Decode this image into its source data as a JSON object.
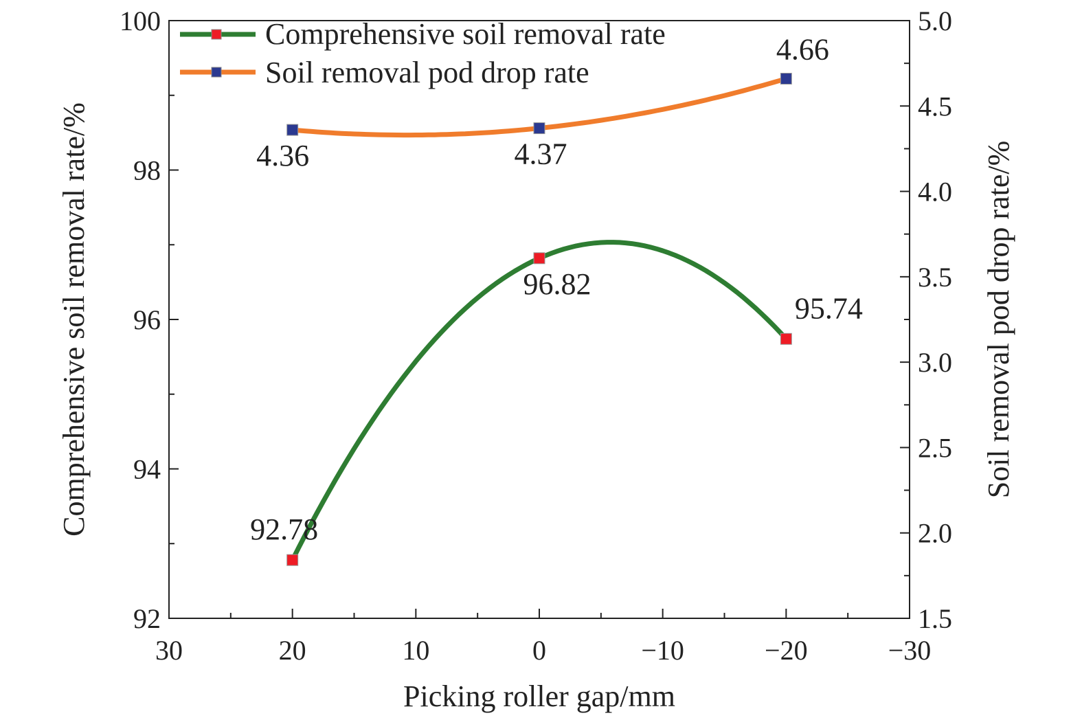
{
  "chart_data": {
    "type": "line",
    "xlabel": "Picking roller gap/mm",
    "ylabel_left": "Comprehensive soil removal rate/%",
    "ylabel_right": "Soil removal pod drop rate/%",
    "x_ticks": [
      "30",
      "20",
      "10",
      "0",
      "−10",
      "−20",
      "−30"
    ],
    "x_tick_values": [
      30,
      20,
      10,
      0,
      -10,
      -20,
      -30
    ],
    "xlim": [
      30,
      -30
    ],
    "y_left_ticks": [
      "92",
      "94",
      "96",
      "98",
      "100"
    ],
    "y_left_tick_values": [
      92,
      94,
      96,
      98,
      100
    ],
    "ylim_left": [
      92,
      100
    ],
    "y_right_ticks": [
      "1.5",
      "2.0",
      "2.5",
      "3.0",
      "3.5",
      "4.0",
      "4.5",
      "5.0"
    ],
    "y_right_tick_values": [
      1.5,
      2.0,
      2.5,
      3.0,
      3.5,
      4.0,
      4.5,
      5.0
    ],
    "ylim_right": [
      1.5,
      5.0
    ],
    "legend_position": "top-left",
    "grid": false,
    "series": [
      {
        "name": "Comprehensive soil removal rate",
        "axis": "left",
        "color": "#2e7d32",
        "marker_color": "#ee1c25",
        "x": [
          20,
          0,
          -20
        ],
        "values": [
          92.78,
          96.82,
          95.74
        ],
        "labels": [
          "92.78",
          "96.82",
          "95.74"
        ]
      },
      {
        "name": "Soil removal pod drop rate",
        "axis": "right",
        "color": "#f07c2c",
        "marker_color": "#2b3990",
        "x": [
          20,
          0,
          -20
        ],
        "values": [
          4.36,
          4.37,
          4.66
        ],
        "labels": [
          "4.36",
          "4.37",
          "4.66"
        ]
      }
    ]
  }
}
